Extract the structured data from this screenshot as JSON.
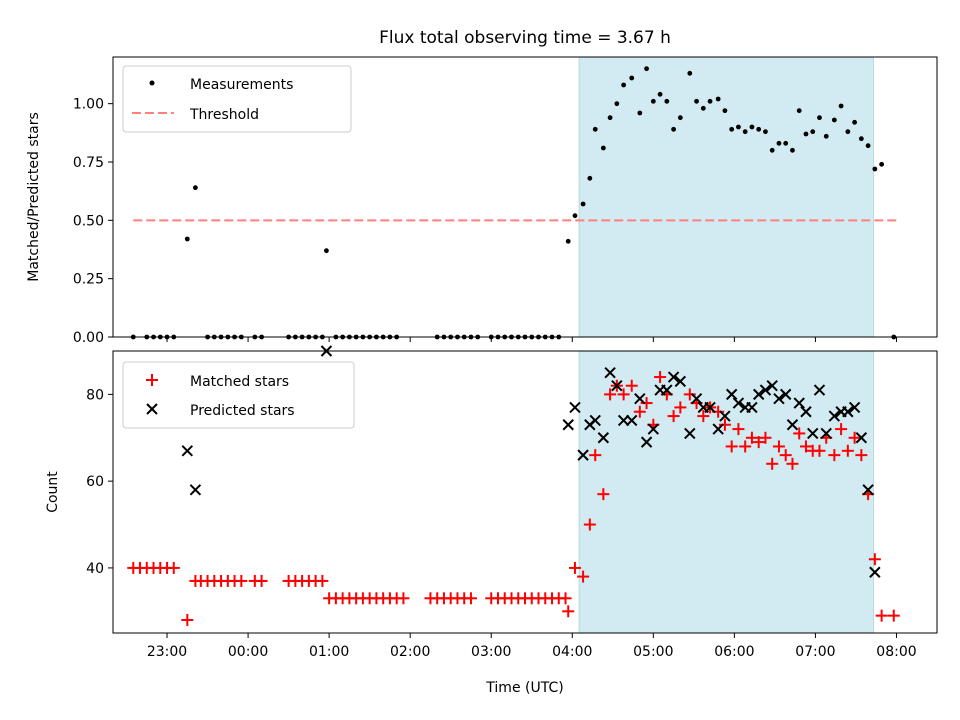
{
  "title": "Flux total observing time = 3.67 h",
  "colors": {
    "measurement": "#000000",
    "threshold": "#ff7f7f",
    "span": "#add8e6",
    "matched": "#ff0000",
    "predicted": "#000000"
  },
  "chart_data": [
    {
      "type": "scatter",
      "ylabel": "Matched/Predicted stars",
      "xlabel": "",
      "xlim": [
        "22:20",
        "08:30"
      ],
      "ylim": [
        0,
        1.2
      ],
      "yticks": [
        0.0,
        0.25,
        0.5,
        0.75,
        1.0
      ],
      "ytick_labels": [
        "0.00",
        "0.25",
        "0.50",
        "0.75",
        "1.00"
      ],
      "legend": {
        "location": "upper-left",
        "entries": [
          "Measurements",
          "Threshold"
        ]
      },
      "shaded_span": {
        "start": "04:05",
        "end": "07:43"
      },
      "threshold": {
        "value": 0.5,
        "start": "22:35",
        "end": "08:00"
      },
      "series": [
        {
          "name": "Measurements",
          "points": [
            [
              "22:35",
              0
            ],
            [
              "22:45",
              0
            ],
            [
              "22:50",
              0
            ],
            [
              "22:55",
              0
            ],
            [
              "23:00",
              0
            ],
            [
              "23:05",
              0
            ],
            [
              "23:15",
              0.42
            ],
            [
              "23:21",
              0.64
            ],
            [
              "23:30",
              0
            ],
            [
              "23:35",
              0
            ],
            [
              "23:40",
              0
            ],
            [
              "23:45",
              0
            ],
            [
              "23:50",
              0
            ],
            [
              "23:55",
              0
            ],
            [
              "00:05",
              0
            ],
            [
              "00:10",
              0
            ],
            [
              "00:30",
              0
            ],
            [
              "00:35",
              0
            ],
            [
              "00:40",
              0
            ],
            [
              "00:45",
              0
            ],
            [
              "00:50",
              0
            ],
            [
              "00:55",
              0
            ],
            [
              "00:58",
              0.37
            ],
            [
              "01:05",
              0
            ],
            [
              "01:10",
              0
            ],
            [
              "01:15",
              0
            ],
            [
              "01:20",
              0
            ],
            [
              "01:25",
              0
            ],
            [
              "01:30",
              0
            ],
            [
              "01:35",
              0
            ],
            [
              "01:40",
              0
            ],
            [
              "01:45",
              0
            ],
            [
              "01:50",
              0
            ],
            [
              "02:20",
              0
            ],
            [
              "02:25",
              0
            ],
            [
              "02:30",
              0
            ],
            [
              "02:35",
              0
            ],
            [
              "02:40",
              0
            ],
            [
              "02:45",
              0
            ],
            [
              "02:50",
              0
            ],
            [
              "03:00",
              0
            ],
            [
              "03:05",
              0
            ],
            [
              "03:10",
              0
            ],
            [
              "03:15",
              0
            ],
            [
              "03:20",
              0
            ],
            [
              "03:25",
              0
            ],
            [
              "03:30",
              0
            ],
            [
              "03:35",
              0
            ],
            [
              "03:40",
              0
            ],
            [
              "03:45",
              0
            ],
            [
              "03:50",
              0
            ],
            [
              "03:57",
              0.41
            ],
            [
              "04:02",
              0.52
            ],
            [
              "04:08",
              0.57
            ],
            [
              "04:13",
              0.68
            ],
            [
              "04:17",
              0.89
            ],
            [
              "04:23",
              0.81
            ],
            [
              "04:28",
              0.94
            ],
            [
              "04:33",
              1.0
            ],
            [
              "04:38",
              1.08
            ],
            [
              "04:44",
              1.11
            ],
            [
              "04:50",
              0.96
            ],
            [
              "04:55",
              1.15
            ],
            [
              "05:00",
              1.01
            ],
            [
              "05:05",
              1.04
            ],
            [
              "05:10",
              1.01
            ],
            [
              "05:15",
              0.89
            ],
            [
              "05:20",
              0.94
            ],
            [
              "05:27",
              1.13
            ],
            [
              "05:32",
              1.01
            ],
            [
              "05:37",
              0.98
            ],
            [
              "05:42",
              1.01
            ],
            [
              "05:48",
              1.02
            ],
            [
              "05:53",
              0.97
            ],
            [
              "05:58",
              0.89
            ],
            [
              "06:03",
              0.9
            ],
            [
              "06:08",
              0.88
            ],
            [
              "06:13",
              0.9
            ],
            [
              "06:18",
              0.89
            ],
            [
              "06:23",
              0.88
            ],
            [
              "06:28",
              0.8
            ],
            [
              "06:33",
              0.83
            ],
            [
              "06:38",
              0.83
            ],
            [
              "06:43",
              0.8
            ],
            [
              "06:48",
              0.97
            ],
            [
              "06:53",
              0.87
            ],
            [
              "06:58",
              0.88
            ],
            [
              "07:03",
              0.94
            ],
            [
              "07:08",
              0.86
            ],
            [
              "07:14",
              0.93
            ],
            [
              "07:19",
              0.99
            ],
            [
              "07:24",
              0.88
            ],
            [
              "07:29",
              0.92
            ],
            [
              "07:34",
              0.85
            ],
            [
              "07:39",
              0.82
            ],
            [
              "07:44",
              0.72
            ],
            [
              "07:49",
              0.74
            ],
            [
              "07:58",
              0
            ]
          ]
        }
      ]
    },
    {
      "type": "scatter",
      "ylabel": "Count",
      "xlabel": "Time (UTC)",
      "xlim": [
        "22:20",
        "08:30"
      ],
      "ylim": [
        25,
        90
      ],
      "yticks": [
        40,
        60,
        80
      ],
      "ytick_labels": [
        "40",
        "60",
        "80"
      ],
      "xticks": [
        "23:00",
        "00:00",
        "01:00",
        "02:00",
        "03:00",
        "04:00",
        "05:00",
        "06:00",
        "07:00",
        "08:00"
      ],
      "xtick_labels": [
        "23:00",
        "00:00",
        "01:00",
        "02:00",
        "03:00",
        "04:00",
        "05:00",
        "06:00",
        "07:00",
        "08:00"
      ],
      "legend": {
        "location": "upper-left",
        "entries": [
          "Matched stars",
          "Predicted stars"
        ]
      },
      "shaded_span": {
        "start": "04:05",
        "end": "07:43"
      },
      "series": [
        {
          "name": "Matched stars",
          "points": [
            [
              "22:35",
              40
            ],
            [
              "22:40",
              40
            ],
            [
              "22:45",
              40
            ],
            [
              "22:50",
              40
            ],
            [
              "22:55",
              40
            ],
            [
              "23:00",
              40
            ],
            [
              "23:05",
              40
            ],
            [
              "23:15",
              28
            ],
            [
              "23:21",
              37
            ],
            [
              "23:25",
              37
            ],
            [
              "23:30",
              37
            ],
            [
              "23:35",
              37
            ],
            [
              "23:40",
              37
            ],
            [
              "23:45",
              37
            ],
            [
              "23:50",
              37
            ],
            [
              "23:55",
              37
            ],
            [
              "00:05",
              37
            ],
            [
              "00:10",
              37
            ],
            [
              "00:30",
              37
            ],
            [
              "00:35",
              37
            ],
            [
              "00:40",
              37
            ],
            [
              "00:45",
              37
            ],
            [
              "00:50",
              37
            ],
            [
              "00:55",
              37
            ],
            [
              "01:00",
              33
            ],
            [
              "01:05",
              33
            ],
            [
              "01:10",
              33
            ],
            [
              "01:15",
              33
            ],
            [
              "01:20",
              33
            ],
            [
              "01:25",
              33
            ],
            [
              "01:30",
              33
            ],
            [
              "01:35",
              33
            ],
            [
              "01:40",
              33
            ],
            [
              "01:45",
              33
            ],
            [
              "01:50",
              33
            ],
            [
              "01:55",
              33
            ],
            [
              "02:15",
              33
            ],
            [
              "02:20",
              33
            ],
            [
              "02:25",
              33
            ],
            [
              "02:30",
              33
            ],
            [
              "02:35",
              33
            ],
            [
              "02:40",
              33
            ],
            [
              "02:45",
              33
            ],
            [
              "03:00",
              33
            ],
            [
              "03:05",
              33
            ],
            [
              "03:10",
              33
            ],
            [
              "03:15",
              33
            ],
            [
              "03:20",
              33
            ],
            [
              "03:25",
              33
            ],
            [
              "03:30",
              33
            ],
            [
              "03:35",
              33
            ],
            [
              "03:40",
              33
            ],
            [
              "03:45",
              33
            ],
            [
              "03:50",
              33
            ],
            [
              "03:55",
              33
            ],
            [
              "03:57",
              30
            ],
            [
              "04:02",
              40
            ],
            [
              "04:08",
              38
            ],
            [
              "04:13",
              50
            ],
            [
              "04:17",
              66
            ],
            [
              "04:23",
              57
            ],
            [
              "04:28",
              80
            ],
            [
              "04:33",
              82
            ],
            [
              "04:38",
              80
            ],
            [
              "04:44",
              82
            ],
            [
              "04:50",
              76
            ],
            [
              "04:55",
              78
            ],
            [
              "05:00",
              73
            ],
            [
              "05:05",
              84
            ],
            [
              "05:10",
              80
            ],
            [
              "05:15",
              75
            ],
            [
              "05:20",
              77
            ],
            [
              "05:27",
              80
            ],
            [
              "05:32",
              78
            ],
            [
              "05:37",
              75
            ],
            [
              "05:42",
              77
            ],
            [
              "05:48",
              76
            ],
            [
              "05:53",
              73
            ],
            [
              "05:58",
              68
            ],
            [
              "06:03",
              72
            ],
            [
              "06:08",
              68
            ],
            [
              "06:13",
              70
            ],
            [
              "06:18",
              69
            ],
            [
              "06:23",
              70
            ],
            [
              "06:28",
              64
            ],
            [
              "06:33",
              68
            ],
            [
              "06:38",
              66
            ],
            [
              "06:43",
              64
            ],
            [
              "06:48",
              71
            ],
            [
              "06:53",
              68
            ],
            [
              "06:58",
              67
            ],
            [
              "07:03",
              67
            ],
            [
              "07:08",
              70
            ],
            [
              "07:14",
              66
            ],
            [
              "07:19",
              72
            ],
            [
              "07:24",
              67
            ],
            [
              "07:29",
              70
            ],
            [
              "07:34",
              66
            ],
            [
              "07:39",
              57
            ],
            [
              "07:44",
              42
            ],
            [
              "07:49",
              29
            ],
            [
              "07:58",
              29
            ]
          ]
        },
        {
          "name": "Predicted stars",
          "points": [
            [
              "23:15",
              67
            ],
            [
              "23:21",
              58
            ],
            [
              "00:58",
              90
            ],
            [
              "03:57",
              73
            ],
            [
              "04:02",
              77
            ],
            [
              "04:08",
              66
            ],
            [
              "04:13",
              73
            ],
            [
              "04:17",
              74
            ],
            [
              "04:23",
              70
            ],
            [
              "04:28",
              85
            ],
            [
              "04:33",
              82
            ],
            [
              "04:38",
              74
            ],
            [
              "04:44",
              74
            ],
            [
              "04:50",
              79
            ],
            [
              "04:55",
              69
            ],
            [
              "05:00",
              72
            ],
            [
              "05:05",
              81
            ],
            [
              "05:10",
              81
            ],
            [
              "05:15",
              84
            ],
            [
              "05:20",
              83
            ],
            [
              "05:27",
              71
            ],
            [
              "05:32",
              79
            ],
            [
              "05:37",
              77
            ],
            [
              "05:42",
              77
            ],
            [
              "05:48",
              72
            ],
            [
              "05:53",
              75
            ],
            [
              "05:58",
              80
            ],
            [
              "06:03",
              78
            ],
            [
              "06:08",
              77
            ],
            [
              "06:13",
              77
            ],
            [
              "06:18",
              80
            ],
            [
              "06:23",
              81
            ],
            [
              "06:28",
              82
            ],
            [
              "06:33",
              79
            ],
            [
              "06:38",
              80
            ],
            [
              "06:43",
              73
            ],
            [
              "06:48",
              78
            ],
            [
              "06:53",
              76
            ],
            [
              "06:58",
              71
            ],
            [
              "07:03",
              81
            ],
            [
              "07:08",
              71
            ],
            [
              "07:14",
              75
            ],
            [
              "07:19",
              76
            ],
            [
              "07:24",
              76
            ],
            [
              "07:29",
              77
            ],
            [
              "07:34",
              70
            ],
            [
              "07:39",
              58
            ],
            [
              "07:44",
              39
            ]
          ]
        }
      ]
    }
  ]
}
